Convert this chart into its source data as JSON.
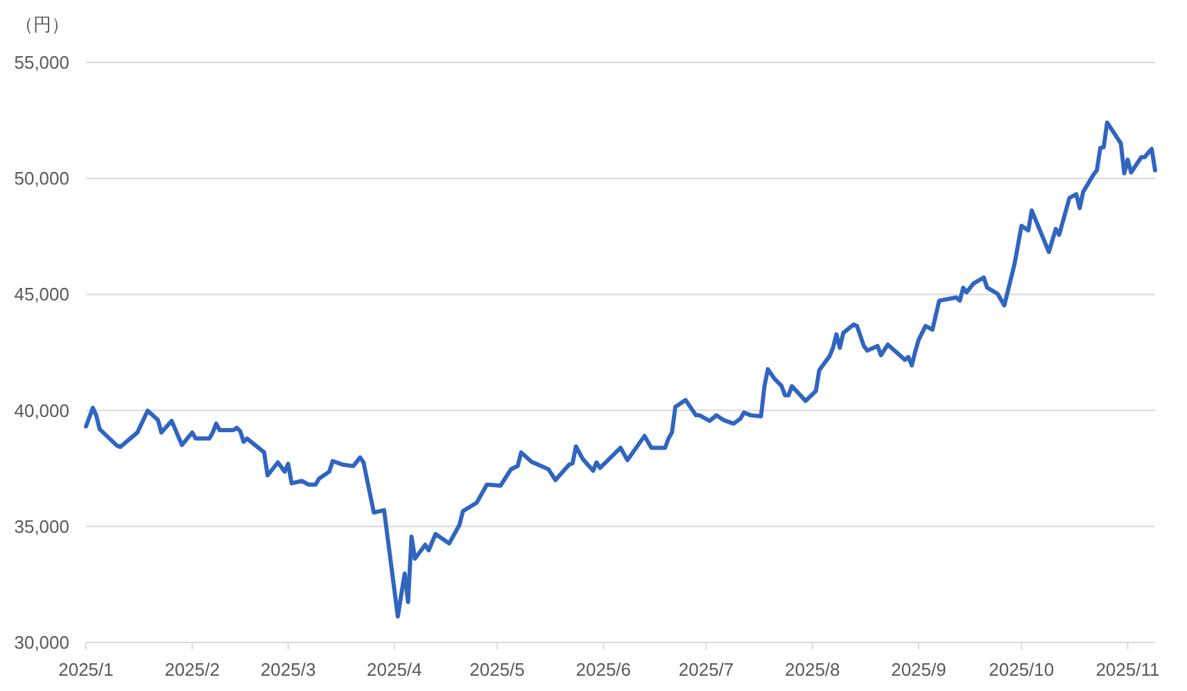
{
  "chart_data": {
    "type": "line",
    "ylabel": "（円）",
    "grid": "y",
    "xlim": [
      "2025-01-06",
      "2025-11-14"
    ],
    "xticks": [
      {
        "value": "2025-01-06",
        "label": "2025/1"
      },
      {
        "value": "2025-02-06",
        "label": "2025/2"
      },
      {
        "value": "2025-03-06",
        "label": "2025/3"
      },
      {
        "value": "2025-04-06",
        "label": "2025/4"
      },
      {
        "value": "2025-05-06",
        "label": "2025/5"
      },
      {
        "value": "2025-06-06",
        "label": "2025/6"
      },
      {
        "value": "2025-07-06",
        "label": "2025/7"
      },
      {
        "value": "2025-08-06",
        "label": "2025/8"
      },
      {
        "value": "2025-09-06",
        "label": "2025/9"
      },
      {
        "value": "2025-10-06",
        "label": "2025/10"
      },
      {
        "value": "2025-11-06",
        "label": "2025/11"
      }
    ],
    "ylim": [
      30000,
      55000
    ],
    "yticks": [
      {
        "value": 30000,
        "label": "30,000"
      },
      {
        "value": 35000,
        "label": "35,000"
      },
      {
        "value": 40000,
        "label": "40,000"
      },
      {
        "value": 45000,
        "label": "45,000"
      },
      {
        "value": 50000,
        "label": "50,000"
      },
      {
        "value": 55000,
        "label": "55,000"
      }
    ],
    "x": [
      "2025-01-06",
      "2025-01-08",
      "2025-01-09",
      "2025-01-10",
      "2025-01-15",
      "2025-01-16",
      "2025-01-17",
      "2025-01-21",
      "2025-01-24",
      "2025-01-27",
      "2025-01-28",
      "2025-01-31",
      "2025-02-03",
      "2025-02-06",
      "2025-02-07",
      "2025-02-11",
      "2025-02-12",
      "2025-02-13",
      "2025-02-14",
      "2025-02-18",
      "2025-02-19",
      "2025-02-20",
      "2025-02-21",
      "2025-02-22",
      "2025-02-27",
      "2025-02-28",
      "2025-03-03",
      "2025-03-05",
      "2025-03-06",
      "2025-03-07",
      "2025-03-10",
      "2025-03-12",
      "2025-03-14",
      "2025-03-15",
      "2025-03-18",
      "2025-03-19",
      "2025-03-22",
      "2025-03-25",
      "2025-03-27",
      "2025-03-28",
      "2025-03-31",
      "2025-04-03",
      "2025-04-04",
      "2025-04-07",
      "2025-04-09",
      "2025-04-10",
      "2025-04-11",
      "2025-04-12",
      "2025-04-15",
      "2025-04-16",
      "2025-04-18",
      "2025-04-22",
      "2025-04-25",
      "2025-04-26",
      "2025-04-30",
      "2025-05-03",
      "2025-05-07",
      "2025-05-10",
      "2025-05-12",
      "2025-05-13",
      "2025-05-16",
      "2025-05-21",
      "2025-05-23",
      "2025-05-27",
      "2025-05-28",
      "2025-05-29",
      "2025-05-31",
      "2025-06-03",
      "2025-06-04",
      "2025-06-05",
      "2025-06-11",
      "2025-06-13",
      "2025-06-18",
      "2025-06-20",
      "2025-06-24",
      "2025-06-25",
      "2025-06-26",
      "2025-06-27",
      "2025-06-30",
      "2025-07-03",
      "2025-07-04",
      "2025-07-07",
      "2025-07-09",
      "2025-07-11",
      "2025-07-14",
      "2025-07-16",
      "2025-07-17",
      "2025-07-19",
      "2025-07-22",
      "2025-07-23",
      "2025-07-24",
      "2025-07-26",
      "2025-07-28",
      "2025-07-29",
      "2025-07-30",
      "2025-07-31",
      "2025-08-04",
      "2025-08-07",
      "2025-08-08",
      "2025-08-11",
      "2025-08-12",
      "2025-08-13",
      "2025-08-14",
      "2025-08-15",
      "2025-08-18",
      "2025-08-19",
      "2025-08-21",
      "2025-08-22",
      "2025-08-25",
      "2025-08-26",
      "2025-08-28",
      "2025-09-02",
      "2025-09-03",
      "2025-09-04",
      "2025-09-05",
      "2025-09-06",
      "2025-09-08",
      "2025-09-10",
      "2025-09-12",
      "2025-09-17",
      "2025-09-18",
      "2025-09-19",
      "2025-09-20",
      "2025-09-22",
      "2025-09-25",
      "2025-09-26",
      "2025-09-29",
      "2025-10-01",
      "2025-10-04",
      "2025-10-06",
      "2025-10-08",
      "2025-10-09",
      "2025-10-14",
      "2025-10-16",
      "2025-10-17",
      "2025-10-20",
      "2025-10-22",
      "2025-10-23",
      "2025-10-24",
      "2025-10-27",
      "2025-10-28",
      "2025-10-29",
      "2025-10-30",
      "2025-10-31",
      "2025-11-04",
      "2025-11-05",
      "2025-11-06",
      "2025-11-07",
      "2025-11-10",
      "2025-11-11",
      "2025-11-12",
      "2025-11-13",
      "2025-11-14"
    ],
    "series": [
      {
        "color": "#3065c0",
        "values": [
          39310,
          40110,
          39790,
          39190,
          38490,
          38430,
          38550,
          39050,
          39990,
          39590,
          39050,
          39550,
          38510,
          39050,
          38790,
          38790,
          39050,
          39430,
          39150,
          39150,
          39250,
          39110,
          38650,
          38790,
          38190,
          37200,
          37760,
          37360,
          37700,
          36860,
          36960,
          36800,
          36800,
          37060,
          37360,
          37820,
          37660,
          37600,
          37970,
          37760,
          35600,
          35700,
          34560,
          31120,
          32970,
          31740,
          34560,
          33610,
          34210,
          33970,
          34670,
          34270,
          35070,
          35660,
          36020,
          36800,
          36760,
          37460,
          37610,
          38190,
          37790,
          37460,
          37000,
          37660,
          37720,
          38450,
          37900,
          37400,
          37760,
          37520,
          38390,
          37860,
          38900,
          38390,
          38390,
          38790,
          39050,
          40150,
          40450,
          39790,
          39790,
          39550,
          39790,
          39590,
          39430,
          39650,
          39910,
          39790,
          39750,
          41050,
          41780,
          41350,
          41050,
          40650,
          40650,
          41050,
          40410,
          40840,
          41740,
          42340,
          42700,
          43280,
          42700,
          43340,
          43700,
          43640,
          42780,
          42580,
          42780,
          42380,
          42840,
          42180,
          42300,
          41940,
          42540,
          43040,
          43640,
          43480,
          44730,
          44870,
          44730,
          45290,
          45090,
          45470,
          45730,
          45290,
          45030,
          44530,
          46330,
          47960,
          47760,
          48620,
          46830,
          47820,
          47570,
          49160,
          49320,
          48720,
          49420,
          50160,
          50350,
          51310,
          51350,
          52410,
          51510,
          50220,
          50810,
          50260,
          50920,
          50920,
          51110,
          51270,
          50350
        ]
      }
    ]
  }
}
